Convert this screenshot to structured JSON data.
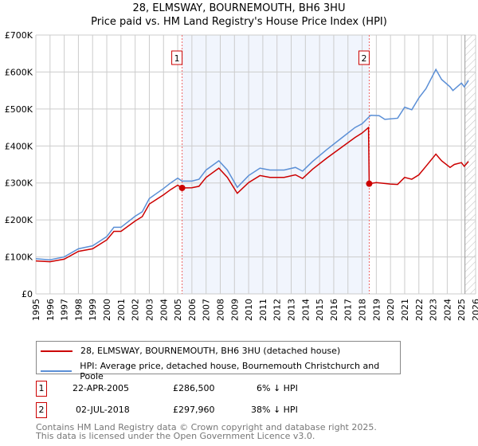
{
  "chart_data": {
    "type": "line",
    "title": "28, ELMSWAY, BOURNEMOUTH, BH6 3HU",
    "subtitle": "Price paid vs. HM Land Registry's House Price Index (HPI)",
    "xlim": [
      1995,
      2026
    ],
    "ylim": [
      0,
      700000
    ],
    "x_ticks": [
      "1995",
      "1996",
      "1997",
      "1998",
      "1999",
      "2000",
      "2001",
      "2002",
      "2003",
      "2004",
      "2005",
      "2006",
      "2007",
      "2008",
      "2009",
      "2010",
      "2011",
      "2012",
      "2013",
      "2014",
      "2015",
      "2016",
      "2017",
      "2018",
      "2019",
      "2020",
      "2021",
      "2022",
      "2023",
      "2024",
      "2025",
      "2026"
    ],
    "y_ticks": [
      {
        "v": 0,
        "l": "£0"
      },
      {
        "v": 100000,
        "l": "£100K"
      },
      {
        "v": 200000,
        "l": "£200K"
      },
      {
        "v": 300000,
        "l": "£300K"
      },
      {
        "v": 400000,
        "l": "£400K"
      },
      {
        "v": 500000,
        "l": "£500K"
      },
      {
        "v": 600000,
        "l": "£600K"
      },
      {
        "v": 700000,
        "l": "£700K"
      }
    ],
    "series": [
      {
        "name": "28, ELMSWAY, BOURNEMOUTH, BH6 3HU (detached house)",
        "color": "#cc0000",
        "x": [
          1995,
          1996,
          1997,
          1998,
          1999,
          2000,
          2000.5,
          2001,
          2002,
          2002.5,
          2003,
          2004,
          2004.5,
          2005,
          2005.3,
          2006,
          2006.5,
          2007,
          2007.9,
          2008.5,
          2009.2,
          2010,
          2010.8,
          2011.5,
          2012.5,
          2013.3,
          2013.8,
          2014.5,
          2015.5,
          2016.5,
          2017.5,
          2018,
          2018.45,
          2018.5,
          2019,
          2020,
          2020.5,
          2021,
          2021.5,
          2022,
          2022.5,
          2023.2,
          2023.6,
          2024.2,
          2024.5,
          2025,
          2025.2,
          2025.5
        ],
        "y": [
          89000,
          87000,
          94000,
          115000,
          122000,
          146000,
          169000,
          169000,
          197000,
          209000,
          243000,
          268000,
          282000,
          294000,
          286500,
          287000,
          291000,
          315000,
          340000,
          315000,
          272000,
          301000,
          320000,
          315000,
          315000,
          322000,
          312000,
          337000,
          367000,
          395000,
          423000,
          435000,
          450000,
          297960,
          301000,
          297000,
          296000,
          315000,
          310000,
          322000,
          345000,
          378000,
          360000,
          342000,
          350000,
          355000,
          345000,
          358000
        ]
      },
      {
        "name": "HPI: Average price, detached house, Bournemouth Christchurch and Poole",
        "color": "#5b8fd6",
        "x": [
          1995,
          1996,
          1997,
          1998,
          1999,
          2000,
          2000.5,
          2001,
          2002,
          2002.5,
          2003,
          2004,
          2004.5,
          2005,
          2005.3,
          2006,
          2006.5,
          2007,
          2007.9,
          2008.5,
          2009.2,
          2010,
          2010.8,
          2011.5,
          2012.5,
          2013.3,
          2013.8,
          2014.5,
          2015.5,
          2016.5,
          2017.5,
          2018,
          2018.6,
          2019.2,
          2019.6,
          2020.5,
          2021,
          2021.5,
          2022,
          2022.5,
          2023.2,
          2023.6,
          2024.2,
          2024.4,
          2025,
          2025.2,
          2025.5
        ],
        "y": [
          95000,
          92000,
          100000,
          122000,
          130000,
          155000,
          180000,
          180000,
          210000,
          222000,
          258000,
          285000,
          300000,
          313000,
          305000,
          305000,
          310000,
          335000,
          360000,
          335000,
          288000,
          320000,
          340000,
          335000,
          335000,
          342000,
          332000,
          358000,
          390000,
          420000,
          450000,
          460000,
          483000,
          482000,
          472000,
          475000,
          505000,
          498000,
          530000,
          555000,
          607000,
          580000,
          560000,
          550000,
          570000,
          560000,
          577000
        ]
      }
    ],
    "transactions": [
      {
        "label": "1",
        "x": 2005.31,
        "date": "22-APR-2005",
        "price": "£286,500",
        "hpi": "6% ↓ HPI"
      },
      {
        "label": "2",
        "x": 2018.5,
        "date": "02-JUL-2018",
        "price": "£297,960",
        "hpi": "38% ↓ HPI"
      }
    ],
    "legend_position": "below"
  },
  "footer": [
    "Contains HM Land Registry data © Crown copyright and database right 2025.",
    "This data is licensed under the Open Government Licence v3.0."
  ]
}
